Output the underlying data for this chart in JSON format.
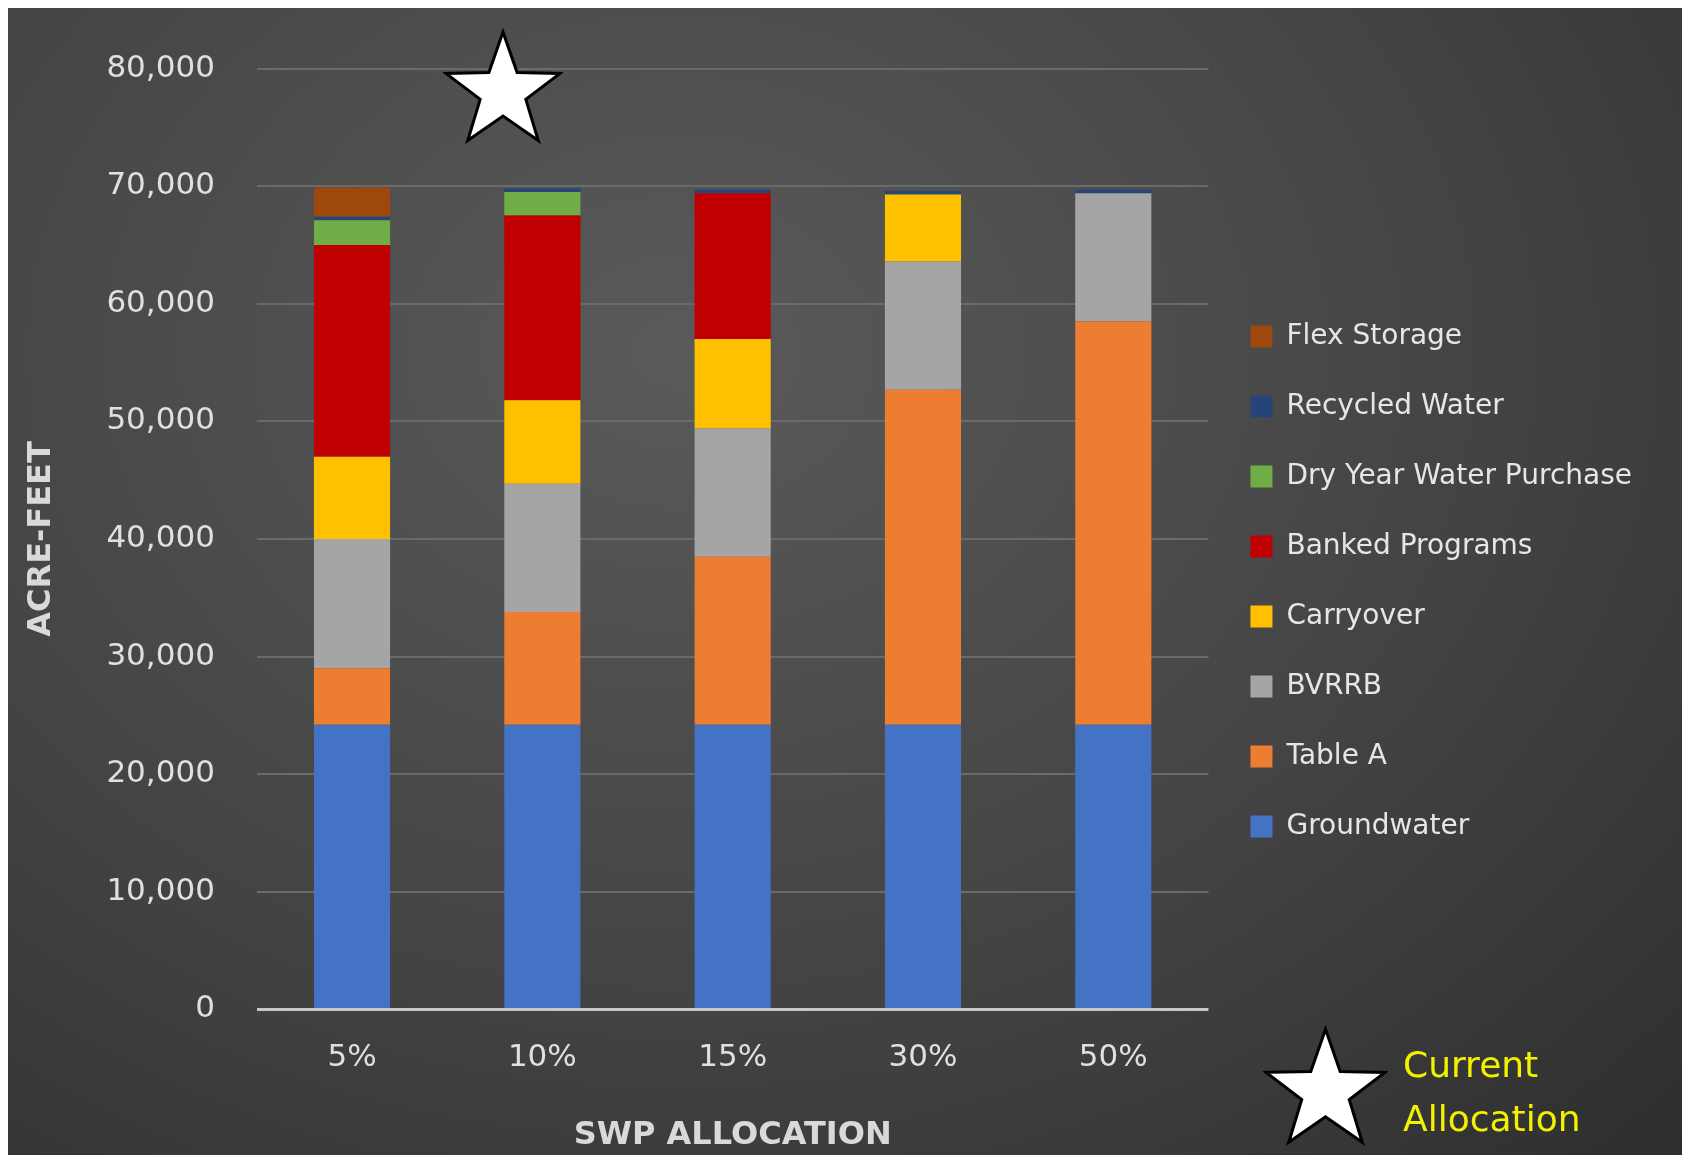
{
  "chart_data": {
    "type": "bar",
    "stacked": true,
    "xlabel": "SWP ALLOCATION",
    "ylabel": "ACRE-FEET",
    "categories": [
      "5%",
      "10%",
      "15%",
      "30%",
      "50%"
    ],
    "series": [
      {
        "name": "Groundwater",
        "color": "#4472c4",
        "values": [
          24200,
          24200,
          24200,
          24200,
          24200
        ]
      },
      {
        "name": "Table A",
        "color": "#ed7d31",
        "values": [
          4800,
          9600,
          14300,
          28500,
          34300
        ]
      },
      {
        "name": "BVRRB",
        "color": "#a5a5a5",
        "values": [
          11000,
          10900,
          10900,
          10900,
          10900
        ]
      },
      {
        "name": "Carryover",
        "color": "#ffc000",
        "values": [
          7000,
          7100,
          7600,
          5700,
          null
        ]
      },
      {
        "name": "Banked Programs",
        "color": "#c00000",
        "values": [
          18000,
          15700,
          12400,
          null,
          null
        ]
      },
      {
        "name": "Dry Year Water Purchase",
        "color": "#70ad47",
        "values": [
          2100,
          2000,
          null,
          null,
          null
        ]
      },
      {
        "name": "Recycled Water",
        "color": "#264478",
        "values": [
          300,
          300,
          300,
          300,
          300
        ]
      },
      {
        "name": "Flex Storage",
        "color": "#9e480e",
        "values": [
          2500,
          null,
          null,
          null,
          null
        ]
      }
    ],
    "ylim": [
      0,
      80000
    ],
    "yticks": [
      0,
      {
        "value": 10000,
        "label": "10,000"
      },
      {
        "value": 20000,
        "label": "20,000"
      },
      {
        "value": 30000,
        "label": "30,000"
      },
      {
        "value": 40000,
        "label": "40,000"
      },
      {
        "value": 50000,
        "label": "50,000"
      },
      {
        "value": 60000,
        "label": "60,000"
      },
      {
        "value": 70000,
        "label": "70,000"
      },
      {
        "value": 80000,
        "label": "80,000"
      }
    ],
    "grid": "y",
    "legend": "right",
    "annotations": [
      "Current Allocation"
    ]
  }
}
